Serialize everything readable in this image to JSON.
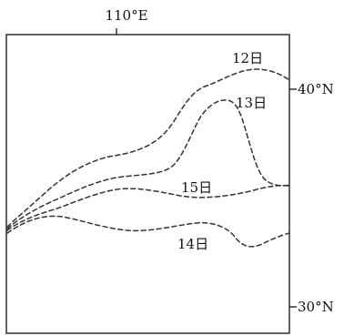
{
  "map": {
    "longitude_label": "110°E",
    "latitude_labels": [
      "40°N",
      "30°N"
    ],
    "routes": [
      {
        "date_label": "12日"
      },
      {
        "date_label": "13日"
      },
      {
        "date_label": "15日"
      },
      {
        "date_label": "14日"
      }
    ],
    "colors": {
      "frame": "#222222",
      "route": "#333333",
      "text": "#111111",
      "background": "#ffffff"
    }
  }
}
